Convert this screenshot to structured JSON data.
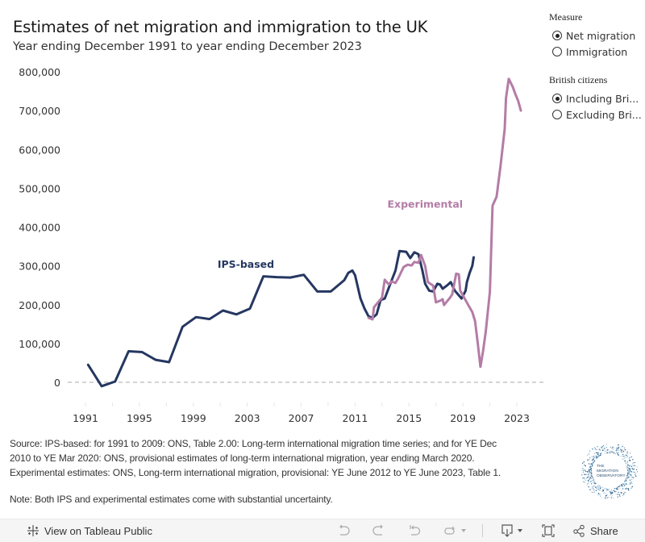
{
  "header": {
    "title": "Estimates of net migration and immigration to the UK",
    "subtitle": "Year ending December 1991 to year ending December 2023"
  },
  "filters": {
    "measure": {
      "heading": "Measure",
      "options": [
        {
          "label": "Net migration",
          "checked": true
        },
        {
          "label": "Immigration",
          "checked": false
        }
      ]
    },
    "british_citizens": {
      "heading": "British citizens",
      "options": [
        {
          "label": "Including Bri...",
          "checked": true
        },
        {
          "label": "Excluding Bri...",
          "checked": false
        }
      ]
    }
  },
  "footer": {
    "source_lines": [
      "Source: IPS-based: for 1991 to 2009: ONS, Table 2.00: Long-term international migration time series; and for YE Dec",
      "2010 to YE Mar 2020: ONS, provisional estimates of long-term international migration, year ending March 2020.",
      "Experimental estimates: ONS, Long-term international migration, provisional: YE June 2012 to YE June 2023, Table 1."
    ],
    "note": "Note: Both IPS and experimental estimates come with substantial uncertainty.",
    "logo_text": [
      "THE",
      "MIGRATION",
      "OBSERVATORY"
    ]
  },
  "toolbar": {
    "view_label": "View on Tableau Public",
    "share_label": "Share",
    "icons": [
      "undo-icon",
      "redo-icon",
      "revert-icon",
      "refresh-icon",
      "download-icon",
      "fullscreen-icon",
      "share-icon"
    ]
  },
  "chart_data": {
    "type": "line",
    "title": "Estimates of net migration and immigration to the UK",
    "xlabel": "",
    "ylabel": "",
    "xlim": [
      1990.0,
      2024.8
    ],
    "ylim": [
      -60000,
      800000
    ],
    "y_ticks": [
      0,
      100000,
      200000,
      300000,
      400000,
      500000,
      600000,
      700000,
      800000
    ],
    "y_tick_labels": [
      "0",
      "100,000",
      "200,000",
      "300,000",
      "400,000",
      "500,000",
      "600,000",
      "700,000",
      "800,000"
    ],
    "x_ticks": [
      1991,
      1995,
      1999,
      2003,
      2007,
      2011,
      2015,
      2019,
      2023
    ],
    "x_tick_labels": [
      "1991",
      "1995",
      "1999",
      "2003",
      "2007",
      "2011",
      "2015",
      "2019",
      "2023"
    ],
    "grid": false,
    "zero_line": "dashed",
    "legend": "inline-labels",
    "annotations": [
      {
        "text": "IPS-based",
        "series": "IPS-based",
        "x": 2000.8,
        "y": 295000
      },
      {
        "text": "Experimental",
        "series": "Experimental",
        "x": 2013.4,
        "y": 450000
      }
    ],
    "series": [
      {
        "name": "IPS-based",
        "color": "#253761",
        "x": [
          1991.2,
          1992.2,
          1993.2,
          1994.2,
          1995.2,
          1996.2,
          1997.2,
          1998.2,
          1999.2,
          2000.2,
          2001.2,
          2002.2,
          2003.2,
          2004.2,
          2005.2,
          2006.2,
          2007.2,
          2008.2,
          2009.2,
          2010.2,
          2010.5,
          2010.8,
          2011.0,
          2011.4,
          2011.7,
          2012.0,
          2012.3,
          2012.6,
          2012.9,
          2013.2,
          2013.6,
          2014.0,
          2014.3,
          2014.8,
          2015.1,
          2015.4,
          2015.7,
          2016.0,
          2016.2,
          2016.5,
          2016.8,
          2017.1,
          2017.3,
          2017.5,
          2017.8,
          2018.1,
          2018.4,
          2018.9,
          2019.2,
          2019.3,
          2019.5,
          2019.7,
          2019.8
        ],
        "y": [
          45000,
          -10000,
          2000,
          80000,
          78000,
          58000,
          52000,
          143000,
          168000,
          163000,
          185000,
          175000,
          190000,
          273000,
          271000,
          270000,
          277000,
          234000,
          234000,
          263000,
          282000,
          288000,
          276000,
          216000,
          190000,
          170000,
          166000,
          175000,
          212000,
          216000,
          252000,
          288000,
          338000,
          336000,
          320000,
          335000,
          330000,
          287000,
          254000,
          236000,
          234000,
          254000,
          252000,
          241000,
          249000,
          258000,
          236000,
          216000,
          236000,
          258000,
          282000,
          300000,
          322000
        ]
      },
      {
        "name": "Experimental",
        "color": "#b47ca6",
        "x": [
          2012.0,
          2012.3,
          2012.4,
          2012.7,
          2013.0,
          2013.2,
          2013.5,
          2013.7,
          2014.0,
          2014.2,
          2014.6,
          2014.9,
          2015.2,
          2015.4,
          2015.7,
          2015.9,
          2016.2,
          2016.4,
          2016.8,
          2017.0,
          2017.3,
          2017.5,
          2017.6,
          2018.0,
          2018.2,
          2018.5,
          2018.7,
          2018.8,
          2019.1,
          2019.4,
          2019.7,
          2019.9,
          2020.1,
          2020.3,
          2020.5,
          2020.7,
          2021.0,
          2021.2,
          2021.5,
          2021.8,
          2022.1,
          2022.2,
          2022.4,
          2022.7,
          2022.9,
          2023.1,
          2023.3
        ],
        "y": [
          166000,
          162000,
          193000,
          206000,
          218000,
          264000,
          252000,
          260000,
          256000,
          268000,
          297000,
          303000,
          301000,
          310000,
          308000,
          328000,
          300000,
          258000,
          249000,
          206000,
          210000,
          214000,
          199000,
          216000,
          226000,
          280000,
          278000,
          236000,
          218000,
          199000,
          181000,
          158000,
          102000,
          40000,
          81000,
          131000,
          233000,
          455000,
          478000,
          559000,
          653000,
          732000,
          782000,
          761000,
          742000,
          725000,
          700000
        ]
      }
    ]
  }
}
